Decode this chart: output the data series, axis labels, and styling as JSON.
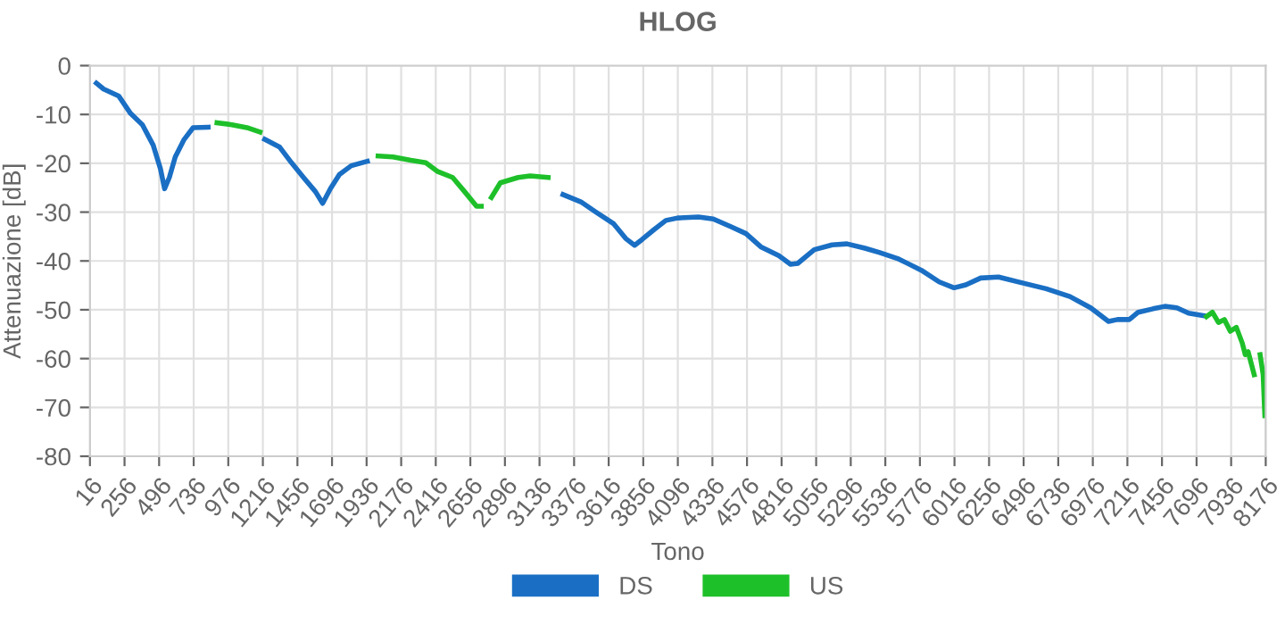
{
  "chart_data": {
    "type": "line",
    "title": "HLOG",
    "xlabel": "Tono",
    "ylabel": "Attenuazione [dB]",
    "xlim": [
      16,
      8176
    ],
    "xticks": [
      16,
      256,
      496,
      736,
      976,
      1216,
      1456,
      1696,
      1936,
      2176,
      2416,
      2656,
      2896,
      3136,
      3376,
      3616,
      3856,
      4096,
      4336,
      4576,
      4816,
      5056,
      5296,
      5536,
      5776,
      6016,
      6256,
      6496,
      6736,
      6976,
      7216,
      7456,
      7696,
      7936,
      8176
    ],
    "ylim": [
      -80,
      0
    ],
    "yticks": [
      -80,
      -70,
      -60,
      -50,
      -40,
      -30,
      -20,
      -10,
      0
    ],
    "grid": true,
    "legend": "bottom",
    "marker": "none",
    "line_style": "solid",
    "series": [
      {
        "name": "DS",
        "color": "#1a6fc4",
        "x": [
          61,
          111,
          215,
          298,
          380,
          455,
          505,
          534,
          567,
          608,
          670,
          732,
          836,
          1000,
          1229,
          1333,
          1415,
          1498,
          1581,
          1631,
          1685,
          1747,
          1829,
          1941,
          2100,
          3299,
          3423,
          3527,
          3651,
          3734,
          3796,
          3848,
          3930,
          4013,
          4095,
          4239,
          4342,
          4466,
          4569,
          4672,
          4796,
          4878,
          4928,
          5043,
          5167,
          5270,
          5394,
          5497,
          5621,
          5786,
          5910,
          6013,
          6095,
          6198,
          6322,
          6487,
          6652,
          6817,
          6961,
          7085,
          7147,
          7229,
          7291,
          7394,
          7476,
          7559,
          7641,
          7744
        ],
        "values": [
          -3.6,
          -4.8,
          -6.2,
          -9.8,
          -12.1,
          -16.3,
          -21.1,
          -25.2,
          -22.9,
          -18.7,
          -15.1,
          -12.7,
          -12.6,
          null,
          -15.1,
          -16.7,
          -19.9,
          -22.9,
          -25.8,
          -28.2,
          -25.2,
          -22.3,
          -20.5,
          -19.6,
          null,
          -26.4,
          -27.9,
          -30.0,
          -32.4,
          -35.4,
          -36.8,
          -35.6,
          -33.6,
          -31.7,
          -31.2,
          -31.0,
          -31.4,
          -33.0,
          -34.4,
          -37.1,
          -38.9,
          -40.7,
          -40.5,
          -37.7,
          -36.7,
          -36.5,
          -37.4,
          -38.3,
          -39.5,
          -41.9,
          -44.3,
          -45.5,
          -44.9,
          -43.5,
          -43.3,
          -44.5,
          -45.7,
          -47.3,
          -49.6,
          -52.4,
          -52.0,
          -52.0,
          -50.5,
          -49.8,
          -49.3,
          -49.6,
          -50.7,
          -51.2
        ]
      },
      {
        "name": "US",
        "color": "#1ec02a",
        "x": [
          898,
          1001,
          1105,
          1196,
          1600,
          2016,
          2119,
          2243,
          2347,
          2430,
          2533,
          2616,
          2699,
          2732,
          2770,
          2802,
          2864,
          2988,
          3071,
          3196,
          5000,
          7765,
          7806,
          7848,
          7889,
          7930,
          7972,
          8013,
          8034,
          8054,
          8096,
          8120,
          8137,
          8158,
          8170
        ],
        "values": [
          -11.7,
          -12.1,
          -12.7,
          -13.6,
          null,
          -18.5,
          -18.7,
          -19.4,
          -19.9,
          -21.7,
          -22.9,
          -25.8,
          -28.8,
          -28.8,
          null,
          -27.0,
          -24.0,
          -22.9,
          -22.6,
          -22.9,
          null,
          -51.4,
          -50.5,
          -52.6,
          -52.0,
          -54.4,
          -53.6,
          -56.8,
          -59.2,
          -58.6,
          -63.3,
          null,
          -59.2,
          -63.3,
          -71.7
        ]
      }
    ]
  }
}
